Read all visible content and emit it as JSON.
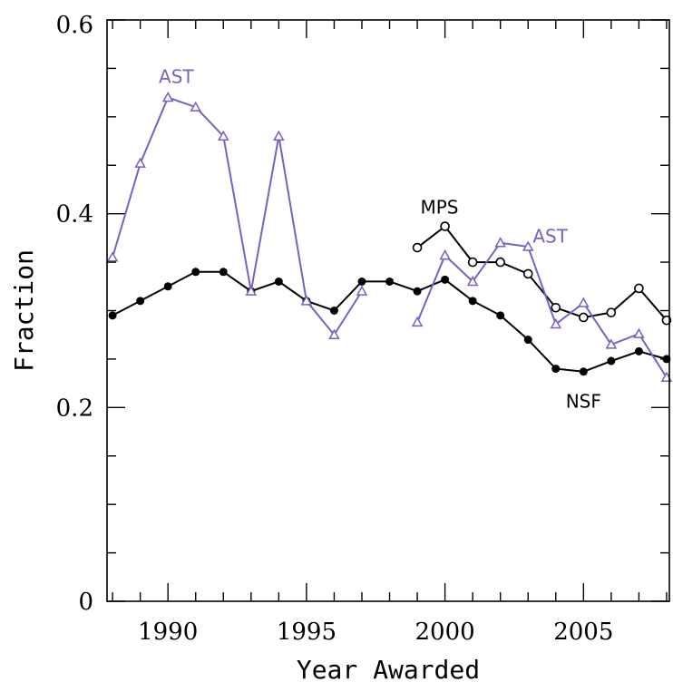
{
  "chart_data": {
    "type": "line",
    "title": "",
    "xlabel": "Year Awarded",
    "ylabel": "Fraction",
    "xlim": [
      1987.8,
      2008.1
    ],
    "ylim": [
      0,
      0.6
    ],
    "x_ticks_major": [
      1990,
      1995,
      2000,
      2005
    ],
    "x_tick_labels": [
      "1990",
      "1995",
      "2000",
      "2005"
    ],
    "y_ticks_major": [
      0,
      0.2,
      0.4,
      0.6
    ],
    "y_tick_labels": [
      "0",
      "0.2",
      "0.4",
      "0.6"
    ],
    "grid": false,
    "colors": {
      "black": "#000000",
      "purple": "#7a5fc4"
    },
    "series": [
      {
        "name": "NSF",
        "marker": "filled-circle",
        "color": "#000000",
        "x": [
          1988,
          1989,
          1990,
          1991,
          1992,
          1993,
          1994,
          1995,
          1996,
          1997,
          1998,
          1999,
          2000,
          2001,
          2002,
          2003,
          2004,
          2005,
          2006,
          2007,
          2008
        ],
        "y": [
          0.295,
          0.31,
          0.325,
          0.34,
          0.34,
          0.32,
          0.33,
          0.31,
          0.3,
          0.33,
          0.33,
          0.32,
          0.332,
          0.31,
          0.295,
          0.27,
          0.24,
          0.237,
          0.248,
          0.258,
          0.25
        ]
      },
      {
        "name": "MPS",
        "marker": "open-circle",
        "color": "#000000",
        "x": [
          1999,
          2000,
          2001,
          2002,
          2003,
          2004,
          2005,
          2006,
          2007,
          2008
        ],
        "y": [
          0.365,
          0.387,
          0.35,
          0.35,
          0.338,
          0.303,
          0.293,
          0.298,
          0.323,
          0.29
        ]
      },
      {
        "name": "AST",
        "marker": "open-triangle",
        "color": "#7a5fc4",
        "x": [
          1988,
          1989,
          1990,
          1991,
          1992,
          1993,
          1994,
          1995,
          1996,
          1997
        ],
        "y": [
          0.355,
          0.452,
          0.52,
          0.51,
          0.48,
          0.32,
          0.48,
          0.31,
          0.275,
          0.32
        ]
      },
      {
        "name": "AST",
        "marker": "open-triangle",
        "color": "#7a5fc4",
        "x": [
          1999,
          2000,
          2001,
          2002,
          2003,
          2004,
          2005,
          2006,
          2007,
          2008
        ],
        "y": [
          0.288,
          0.357,
          0.33,
          0.37,
          0.366,
          0.286,
          0.308,
          0.265,
          0.276,
          0.231
        ]
      }
    ],
    "annotations": [
      {
        "text": "AST",
        "x": 1990.3,
        "y": 0.535,
        "color": "#7a5fc4"
      },
      {
        "text": "MPS",
        "x": 1999.8,
        "y": 0.4,
        "color": "#000000"
      },
      {
        "text": "AST",
        "x": 2003.8,
        "y": 0.37,
        "color": "#7a5fc4"
      },
      {
        "text": "NSF",
        "x": 2005.0,
        "y": 0.2,
        "color": "#000000"
      }
    ]
  }
}
